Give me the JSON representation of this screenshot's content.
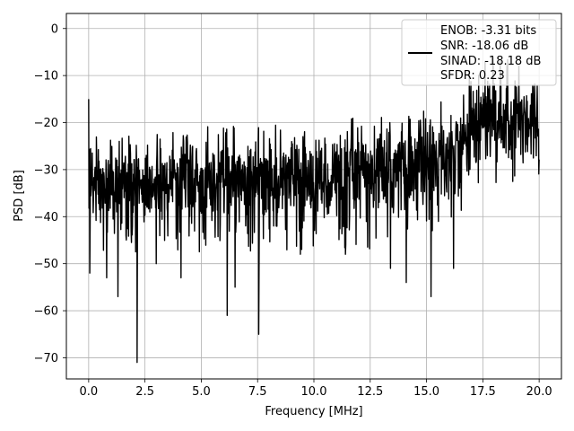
{
  "chart_data": {
    "type": "line",
    "title": "",
    "xlabel": "Frequency [MHz]",
    "ylabel": "PSD [dB]",
    "xlim": [
      -0.99,
      20.99
    ],
    "ylim": [
      -74.5,
      3.2
    ],
    "xticks": [
      0.0,
      2.5,
      5.0,
      7.5,
      10.0,
      12.5,
      15.0,
      17.5,
      20.0
    ],
    "xtick_labels": [
      "0.0",
      "2.5",
      "5.0",
      "7.5",
      "10.0",
      "12.5",
      "15.0",
      "17.5",
      "20.0"
    ],
    "yticks": [
      0,
      -10,
      -20,
      -30,
      -40,
      -50,
      -60,
      -70
    ],
    "ytick_labels": [
      "0",
      "−10",
      "−20",
      "−30",
      "−40",
      "−50",
      "−60",
      "−70"
    ],
    "grid": true,
    "legend_position": "top-right",
    "legend_entries": [
      "ENOB: -3.31 bits",
      "SNR: -18.06 dB",
      "SINAD: -18.18 dB",
      "SFDR: 0.23"
    ],
    "line_color": "#000000",
    "series": [
      {
        "noise_floor_profile": {
          "x": [
            0.0,
            2.5,
            5.0,
            7.5,
            10.0,
            12.5,
            15.0,
            16.5,
            17.5,
            20.0
          ],
          "y": [
            -33,
            -33,
            -32,
            -32,
            -32,
            -31,
            -28,
            -25,
            -19,
            -19
          ]
        },
        "envelope_profile": {
          "x": [
            0.0,
            2.5,
            5.0,
            7.5,
            10.0,
            12.5,
            15.0,
            16.5,
            17.5,
            20.0
          ],
          "upper": [
            -24,
            -24,
            -23,
            -22,
            -22,
            -20,
            -17,
            -16,
            -8,
            -8
          ],
          "lower": [
            -43,
            -43,
            -43,
            -42,
            -41,
            -41,
            -38,
            -33,
            -29,
            -29
          ]
        },
        "peaks": [
          {
            "x": 0.0,
            "y": -15
          },
          {
            "x": 16.9,
            "y": -9
          },
          {
            "x": 17.6,
            "y": -7
          },
          {
            "x": 18.3,
            "y": -9
          },
          {
            "x": 19.1,
            "y": -8
          }
        ],
        "dips": [
          {
            "x": 0.05,
            "y": -52
          },
          {
            "x": 0.8,
            "y": -53
          },
          {
            "x": 1.3,
            "y": -57
          },
          {
            "x": 2.15,
            "y": -71
          },
          {
            "x": 3.0,
            "y": -50
          },
          {
            "x": 4.1,
            "y": -53
          },
          {
            "x": 6.15,
            "y": -61
          },
          {
            "x": 6.5,
            "y": -55
          },
          {
            "x": 7.55,
            "y": -65
          },
          {
            "x": 9.4,
            "y": -48
          },
          {
            "x": 11.4,
            "y": -48
          },
          {
            "x": 13.4,
            "y": -51
          },
          {
            "x": 14.1,
            "y": -54
          },
          {
            "x": 15.2,
            "y": -57
          },
          {
            "x": 16.2,
            "y": -51
          }
        ]
      }
    ]
  }
}
